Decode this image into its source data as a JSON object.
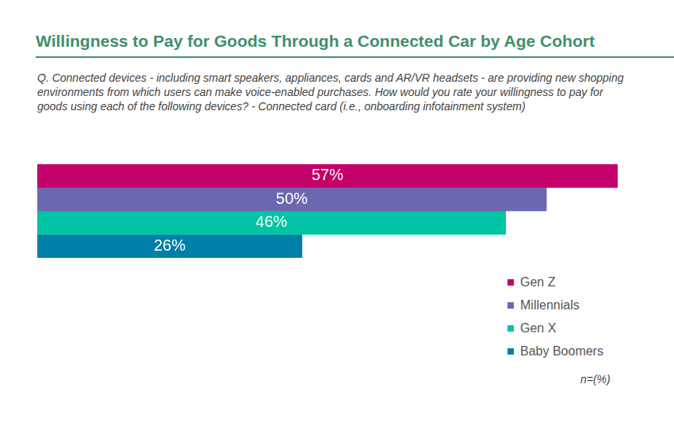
{
  "chart_data": {
    "type": "bar",
    "title": "Willingness to Pay for Goods Through a Connected Car by Age Cohort",
    "subtitle": "Q. Connected devices - including smart speakers, appliances, cards and AR/VR headsets - are providing new shopping environments from which users can make voice-enabled purchases. How would you rate your willingness to pay for  goods using each of the following devices? - Connected card (i.e., onboarding infotainment system)",
    "note": "n=(%)",
    "orientation": "horizontal",
    "categories": [
      null
    ],
    "series": [
      {
        "name": "Gen Z",
        "color": "#c4006a",
        "values": [
          57
        ],
        "value_labels": [
          "57%"
        ]
      },
      {
        "name": "Millennials",
        "color": "#6b68b0",
        "values": [
          50
        ],
        "value_labels": [
          "50%"
        ]
      },
      {
        "name": "Gen X",
        "color": "#00c4a4",
        "values": [
          46
        ],
        "value_labels": [
          "46%"
        ]
      },
      {
        "name": "Baby Boomers",
        "color": "#0080a8",
        "values": [
          26
        ],
        "value_labels": [
          "26%"
        ]
      }
    ],
    "xlim": [
      0,
      57
    ],
    "tick_labels": false,
    "grid": false,
    "legend": "lower right",
    "data_labels": true
  }
}
